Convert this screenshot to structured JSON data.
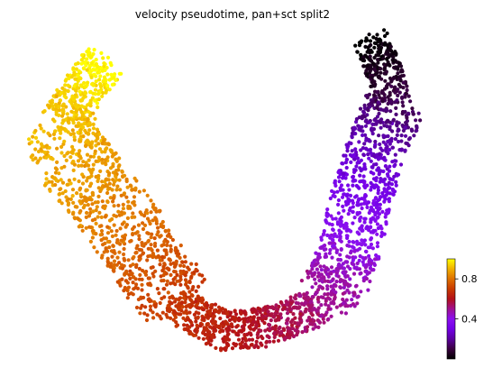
{
  "chart_data": {
    "type": "scatter",
    "title": "velocity pseudotime, pan+sct split2",
    "xlabel": "",
    "ylabel": "",
    "colormap": "gnuplot",
    "colorbar": {
      "vmin": 0.0,
      "vmax": 1.0,
      "ticks": [
        0.4,
        0.8
      ],
      "tick_labels": [
        "0.4",
        "0.8"
      ]
    },
    "axes_visible": false,
    "grid": false,
    "trajectory": [
      {
        "x": 0.83,
        "y": 0.99,
        "pseudotime": 0.0
      },
      {
        "x": 0.865,
        "y": 0.88,
        "pseudotime": 0.06
      },
      {
        "x": 0.885,
        "y": 0.79,
        "pseudotime": 0.12
      },
      {
        "x": 0.86,
        "y": 0.7,
        "pseudotime": 0.2
      },
      {
        "x": 0.83,
        "y": 0.59,
        "pseudotime": 0.28
      },
      {
        "x": 0.8,
        "y": 0.47,
        "pseudotime": 0.35
      },
      {
        "x": 0.785,
        "y": 0.36,
        "pseudotime": 0.4
      },
      {
        "x": 0.755,
        "y": 0.25,
        "pseudotime": 0.46
      },
      {
        "x": 0.69,
        "y": 0.15,
        "pseudotime": 0.52
      },
      {
        "x": 0.58,
        "y": 0.09,
        "pseudotime": 0.58
      },
      {
        "x": 0.47,
        "y": 0.08,
        "pseudotime": 0.63
      },
      {
        "x": 0.39,
        "y": 0.14,
        "pseudotime": 0.68
      },
      {
        "x": 0.32,
        "y": 0.24,
        "pseudotime": 0.73
      },
      {
        "x": 0.27,
        "y": 0.34,
        "pseudotime": 0.78
      },
      {
        "x": 0.22,
        "y": 0.44,
        "pseudotime": 0.82
      },
      {
        "x": 0.16,
        "y": 0.54,
        "pseudotime": 0.86
      },
      {
        "x": 0.1,
        "y": 0.63,
        "pseudotime": 0.89
      },
      {
        "x": 0.08,
        "y": 0.73,
        "pseudotime": 0.92
      },
      {
        "x": 0.13,
        "y": 0.82,
        "pseudotime": 0.95
      },
      {
        "x": 0.185,
        "y": 0.92,
        "pseudotime": 1.0
      }
    ],
    "xlim": [
      0,
      1
    ],
    "ylim": [
      0,
      1
    ]
  }
}
